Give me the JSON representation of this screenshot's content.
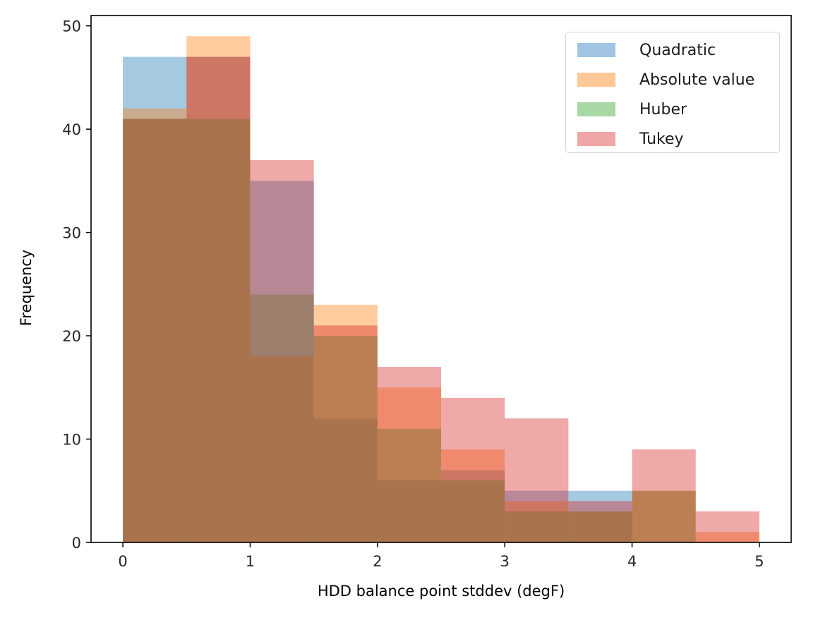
{
  "chart_data": {
    "type": "bar",
    "subtype": "overlapping-histogram",
    "title": "",
    "xlabel": "HDD balance point stddev (degF)",
    "ylabel": "Frequency",
    "xlim": [
      -0.25,
      5.25
    ],
    "ylim": [
      0,
      51
    ],
    "xticks": [
      0,
      1,
      2,
      3,
      4,
      5
    ],
    "yticks": [
      0,
      10,
      20,
      30,
      40,
      50
    ],
    "grid": false,
    "legend_position": "upper right",
    "bin_edges": [
      0,
      0.5,
      1,
      1.5,
      2,
      2.5,
      3,
      3.5,
      4,
      4.5,
      5
    ],
    "categories": [
      "0-0.5",
      "0.5-1",
      "1-1.5",
      "1.5-2",
      "2-2.5",
      "2.5-3",
      "3-3.5",
      "3.5-4",
      "4-4.5",
      "4.5-5"
    ],
    "alpha": 0.4,
    "series": [
      {
        "name": "Quadratic",
        "color": "#1f77b4",
        "values": [
          47,
          47,
          35,
          12,
          6,
          7,
          5,
          5,
          0,
          0
        ]
      },
      {
        "name": "Absolute value",
        "color": "#ff7f0e",
        "values": [
          42,
          49,
          18,
          23,
          15,
          9,
          4,
          3,
          5,
          1
        ]
      },
      {
        "name": "Huber",
        "color": "#2ca02c",
        "values": [
          41,
          41,
          24,
          20,
          11,
          6,
          3,
          3,
          5,
          0
        ]
      },
      {
        "name": "Tukey",
        "color": "#d62728",
        "values": [
          41,
          47,
          37,
          21,
          17,
          14,
          12,
          4,
          9,
          3
        ]
      }
    ]
  },
  "legend": {
    "items": [
      {
        "label": "Quadratic",
        "swatch": "#a0c4e1"
      },
      {
        "label": "Absolute value",
        "swatch": "#ffc896"
      },
      {
        "label": "Huber",
        "swatch": "#a8d8a4"
      },
      {
        "label": "Tukey",
        "swatch": "#efa6a6"
      }
    ]
  },
  "axes": {
    "xlabel": "HDD balance point stddev (degF)",
    "ylabel": "Frequency"
  }
}
